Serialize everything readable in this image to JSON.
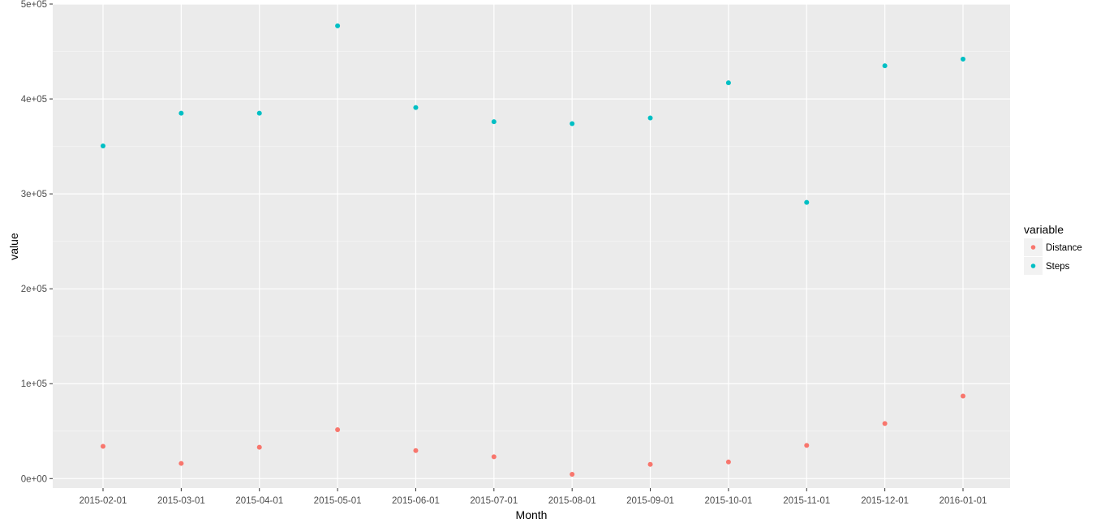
{
  "chart_data": {
    "type": "scatter",
    "title": "",
    "xlabel": "Month",
    "ylabel": "value",
    "categories": [
      "2015-02-01",
      "2015-03-01",
      "2015-04-01",
      "2015-05-01",
      "2015-06-01",
      "2015-07-01",
      "2015-08-01",
      "2015-09-01",
      "2015-10-01",
      "2015-11-01",
      "2015-12-01",
      "2016-01-01"
    ],
    "yticks": [
      0,
      100000,
      200000,
      300000,
      400000,
      500000
    ],
    "ytick_labels": [
      "0e+00",
      "1e+05",
      "2e+05",
      "3e+05",
      "4e+05",
      "5e+05"
    ],
    "ylim": [
      -10000,
      500000
    ],
    "grid": true,
    "legend": {
      "title": "variable",
      "position": "right"
    },
    "series": [
      {
        "name": "Distance",
        "color": "#F8766D",
        "values": [
          34000,
          16000,
          33000,
          51500,
          29500,
          23000,
          4500,
          15000,
          17500,
          35000,
          58000,
          87000
        ]
      },
      {
        "name": "Steps",
        "color": "#00BFC4",
        "values": [
          350500,
          385000,
          385000,
          477000,
          391000,
          376000,
          374000,
          380000,
          417000,
          291000,
          435000,
          442000
        ]
      }
    ]
  }
}
